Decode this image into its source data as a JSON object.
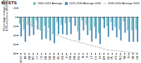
{
  "chart_data": {
    "type": "bar",
    "title": "EU ETS",
    "ylabel": "Percentage change in EU ETS emissions (2005=0)",
    "categories": [
      "EU27",
      "AT",
      "BE",
      "BG",
      "CY",
      "CZ",
      "DE",
      "DK",
      "EE",
      "EL",
      "ES",
      "FI",
      "FR",
      "HR",
      "HU",
      "IE",
      "IT",
      "LT",
      "LU",
      "LV",
      "MT",
      "NL",
      "PL",
      "PT",
      "RO",
      "SE",
      "SI",
      "SK",
      "UK"
    ],
    "series": [
      {
        "name": "2005-2021 Average",
        "type": "bar",
        "color": "#7ec8c8",
        "values": [
          -15,
          -28,
          -18,
          -22,
          -8,
          -30,
          -20,
          -25,
          -38,
          -12,
          -18,
          -14,
          -12,
          -2,
          -32,
          -8,
          -18,
          -30,
          -22,
          -36,
          -5,
          -20,
          -12,
          -22,
          -28,
          -10,
          -30,
          -30,
          -28
        ]
      },
      {
        "name": "2021-2030 Average 2030",
        "type": "bar",
        "color": "#4a90b8",
        "values": [
          -43,
          -55,
          -42,
          -40,
          -28,
          -50,
          -48,
          -52,
          -58,
          -38,
          -38,
          -40,
          -38,
          -20,
          -52,
          -30,
          -40,
          -55,
          -48,
          -60,
          -25,
          -44,
          -30,
          -45,
          -52,
          -35,
          -55,
          -55,
          -55
        ]
      },
      {
        "name": "2030-2050 Average 2050",
        "type": "line",
        "color": "#aaaaaa",
        "line_style": "dotted",
        "marker": "o",
        "values": [
          -5,
          -10,
          -14,
          -18,
          -22,
          -26,
          -30,
          -33,
          -37,
          -40,
          -44,
          -47,
          -50,
          -52,
          -55,
          -57,
          -60,
          -62,
          -65,
          -67,
          -70,
          -72,
          -73,
          -74,
          -75,
          -76,
          -77,
          -78,
          -79
        ]
      }
    ],
    "ylim": [
      -80,
      20
    ],
    "yticks": [
      20,
      0,
      -20,
      -40,
      -60,
      -80
    ],
    "grid": false,
    "legend": "upper right"
  }
}
